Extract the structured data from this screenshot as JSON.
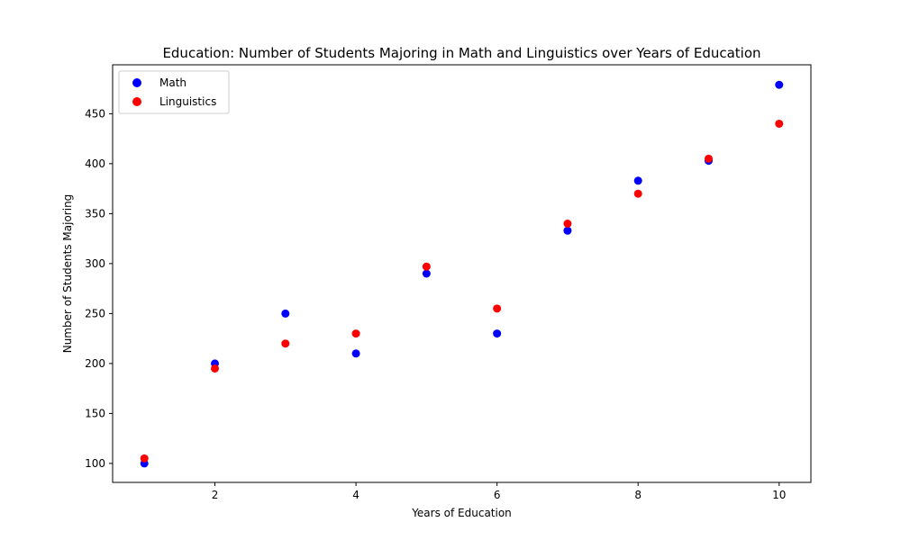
{
  "chart_data": {
    "type": "scatter",
    "title": "Education: Number of Students Majoring in Math and Linguistics over Years of Education",
    "xlabel": "Years of Education",
    "ylabel": "Number of Students Majoring",
    "xlim": [
      0.55,
      10.45
    ],
    "ylim": [
      81,
      499
    ],
    "xticks": [
      2,
      4,
      6,
      8,
      10
    ],
    "yticks": [
      100,
      150,
      200,
      250,
      300,
      350,
      400,
      450
    ],
    "grid": false,
    "legend_position": "top-left",
    "x": [
      1,
      2,
      3,
      4,
      5,
      6,
      7,
      8,
      9,
      10
    ],
    "series": [
      {
        "name": "Math",
        "color": "#0000ff",
        "values": [
          100,
          200,
          250,
          210,
          290,
          230,
          333,
          383,
          403,
          479
        ]
      },
      {
        "name": "Linguistics",
        "color": "#ff0000",
        "values": [
          105,
          195,
          220,
          230,
          297,
          255,
          340,
          370,
          405,
          440
        ]
      }
    ]
  }
}
